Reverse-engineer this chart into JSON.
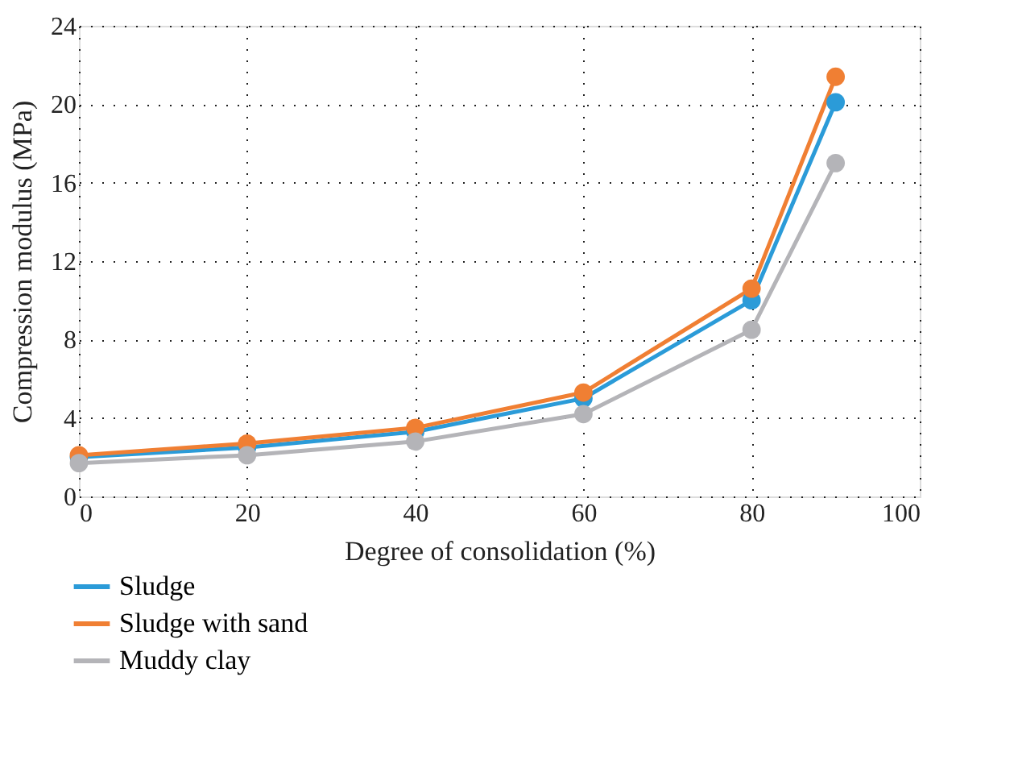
{
  "chart_data": {
    "type": "line",
    "xlabel": "Degree of consolidation (%)",
    "ylabel": "Compression modulus (MPa)",
    "x": [
      0,
      20,
      40,
      60,
      80,
      90
    ],
    "series": [
      {
        "name": "Sludge",
        "color": "#2b9bd8",
        "values": [
          2.0,
          2.5,
          3.3,
          5.0,
          10.0,
          20.1
        ]
      },
      {
        "name": "Sludge with sand",
        "color": "#f07f33",
        "values": [
          2.1,
          2.7,
          3.5,
          5.3,
          10.6,
          21.4
        ]
      },
      {
        "name": "Muddy clay",
        "color": "#b4b4b8",
        "values": [
          1.7,
          2.1,
          2.8,
          4.2,
          8.5,
          17.0
        ]
      }
    ],
    "xlim": [
      0,
      100
    ],
    "xticks": [
      0,
      20,
      40,
      60,
      80,
      100
    ],
    "ylim": [
      0,
      24
    ],
    "yticks": [
      0,
      4,
      8,
      12,
      16,
      20,
      24
    ],
    "grid": true,
    "legend": "bottom left",
    "marker": "circle",
    "line_style": "solid"
  }
}
